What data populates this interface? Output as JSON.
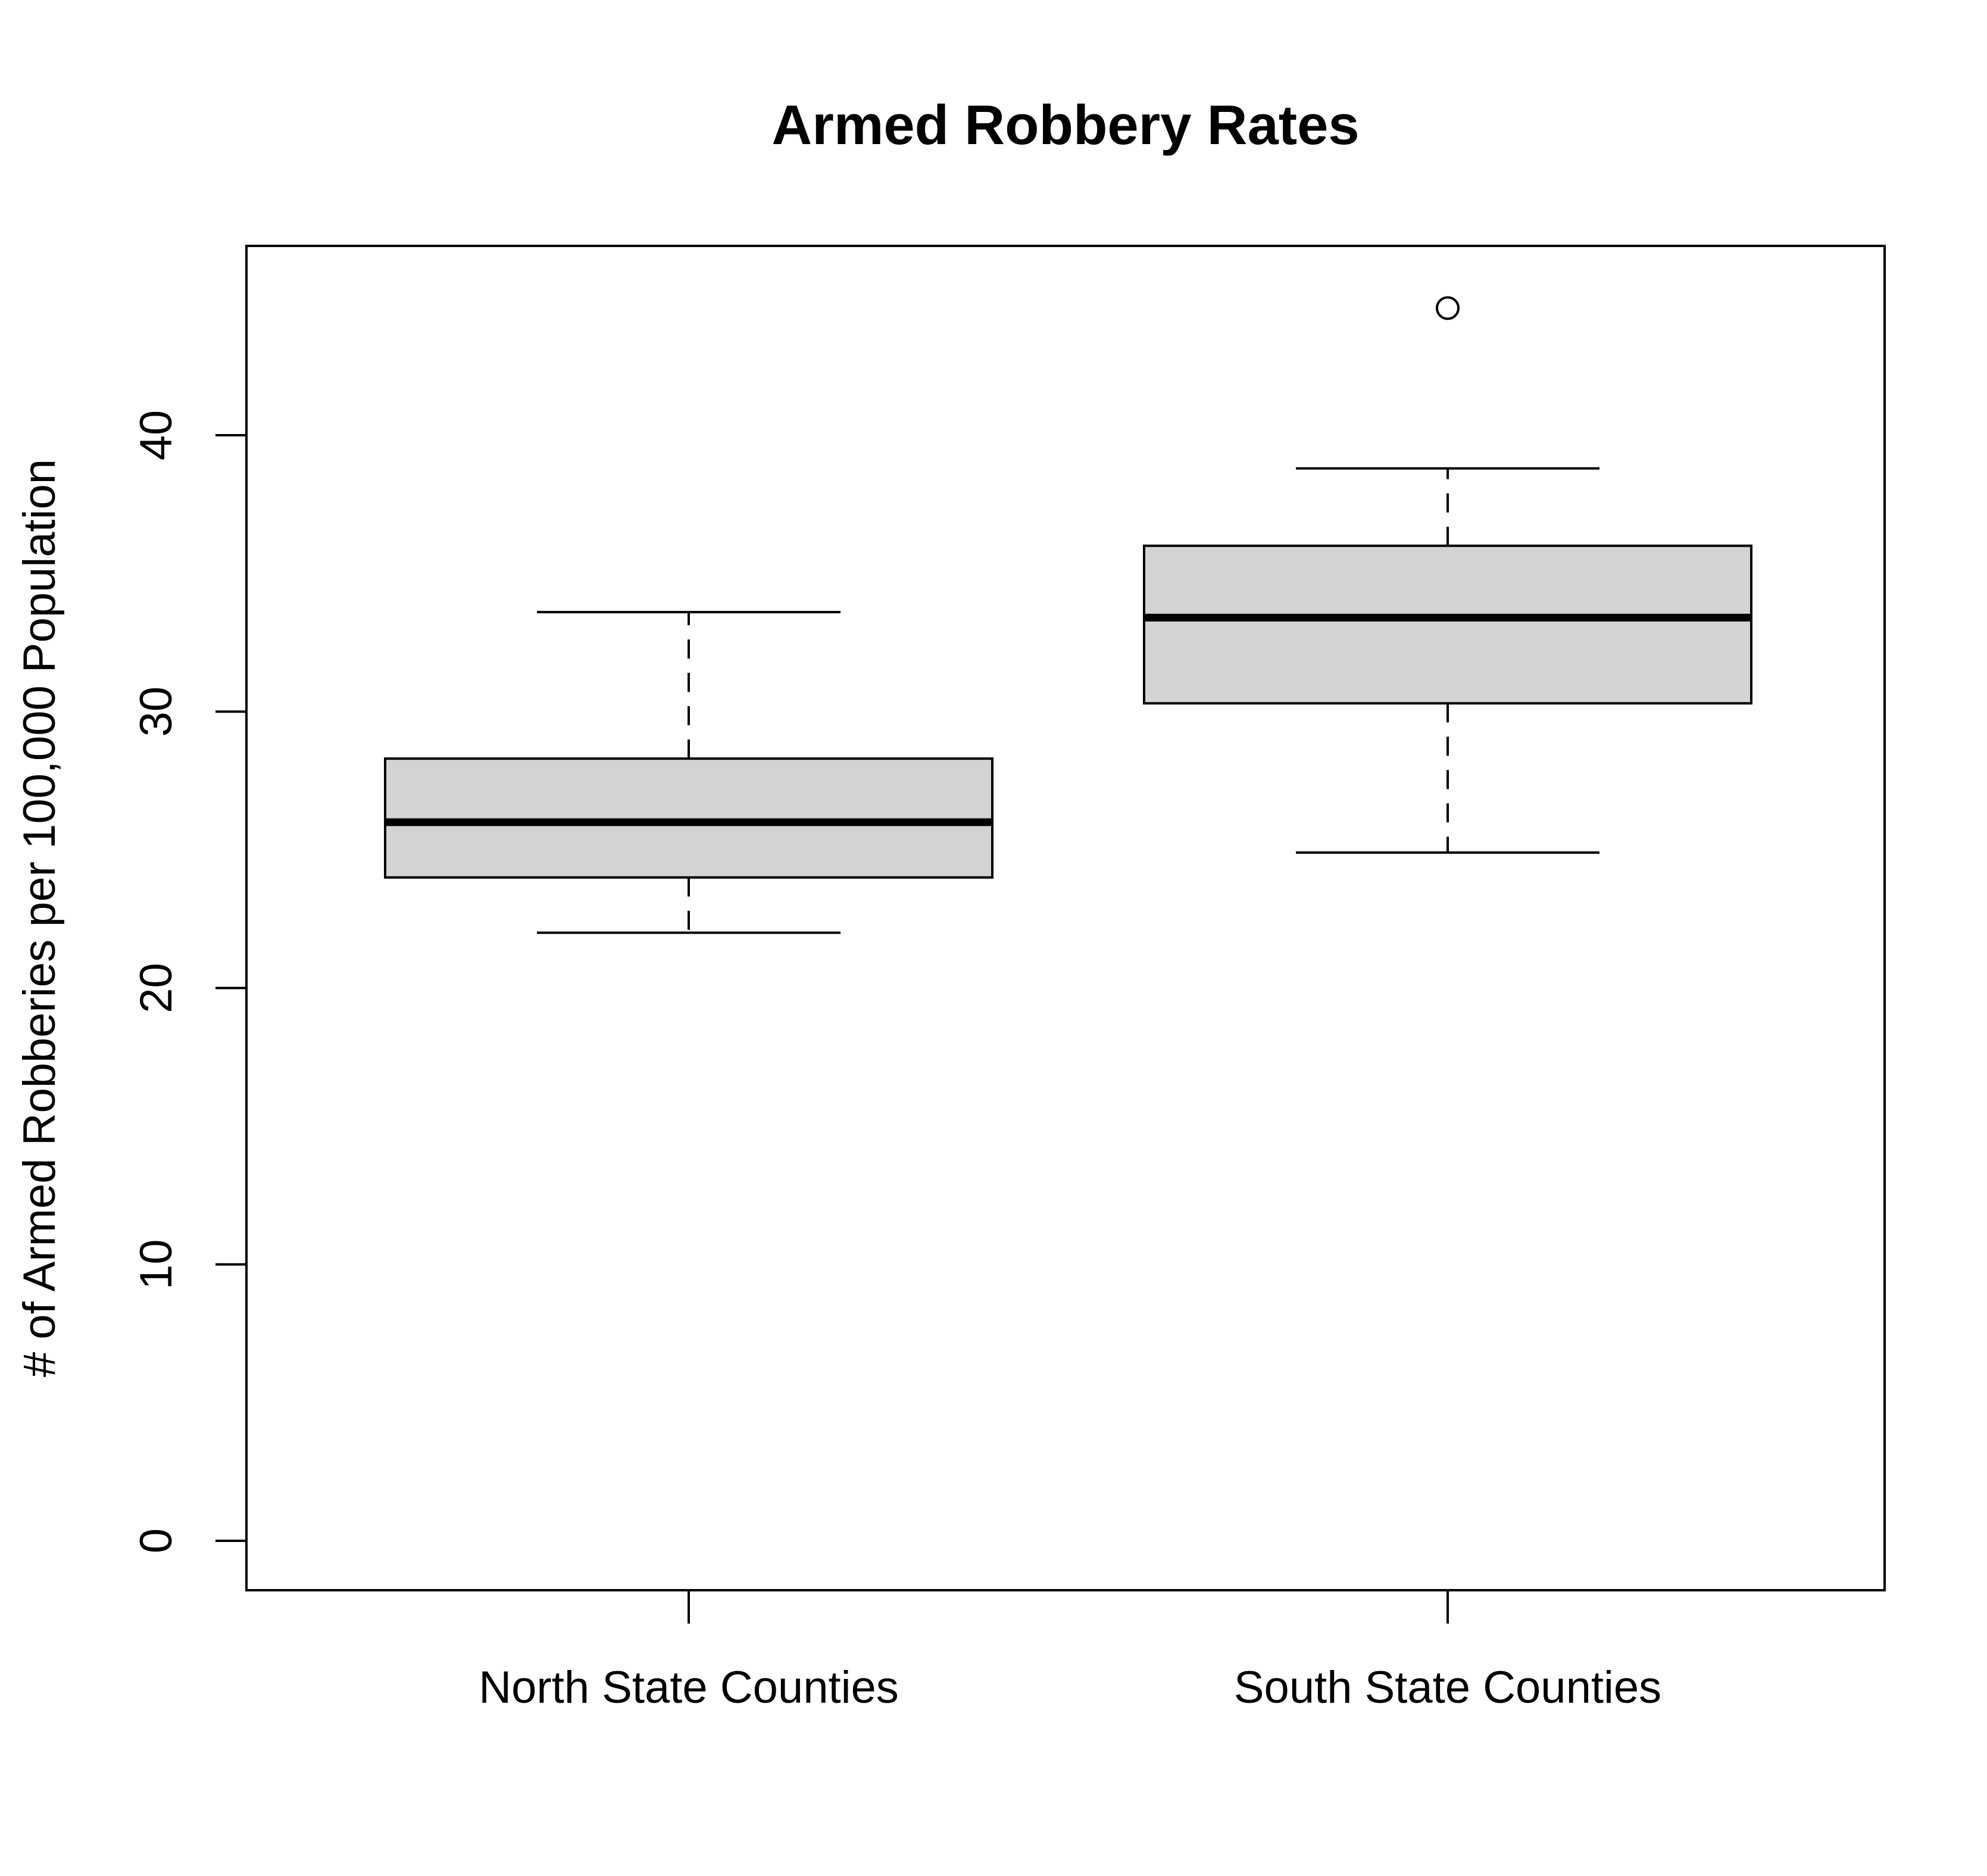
{
  "chart_data": {
    "type": "boxplot",
    "title": "Armed Robbery Rates",
    "xlabel": "",
    "ylabel": "# of Armed Robberies per 100,000 Population",
    "categories": [
      "North State Counties",
      "South State Counties"
    ],
    "boxes": [
      {
        "category": "North State Counties",
        "whisker_low": 22.0,
        "q1": 24.0,
        "median": 26.0,
        "q3": 28.3,
        "whisker_high": 33.6,
        "outliers": []
      },
      {
        "category": "South State Counties",
        "whisker_low": 24.9,
        "q1": 30.3,
        "median": 33.4,
        "q3": 36.0,
        "whisker_high": 38.8,
        "outliers": [
          44.6
        ]
      }
    ],
    "yticks": [
      0,
      10,
      20,
      30,
      40
    ],
    "ylim": [
      -1.8,
      46.8
    ],
    "grid": false,
    "legend": "none",
    "colors": {
      "box_fill": "#d3d3d3",
      "line": "#000000",
      "background": "#ffffff"
    }
  }
}
